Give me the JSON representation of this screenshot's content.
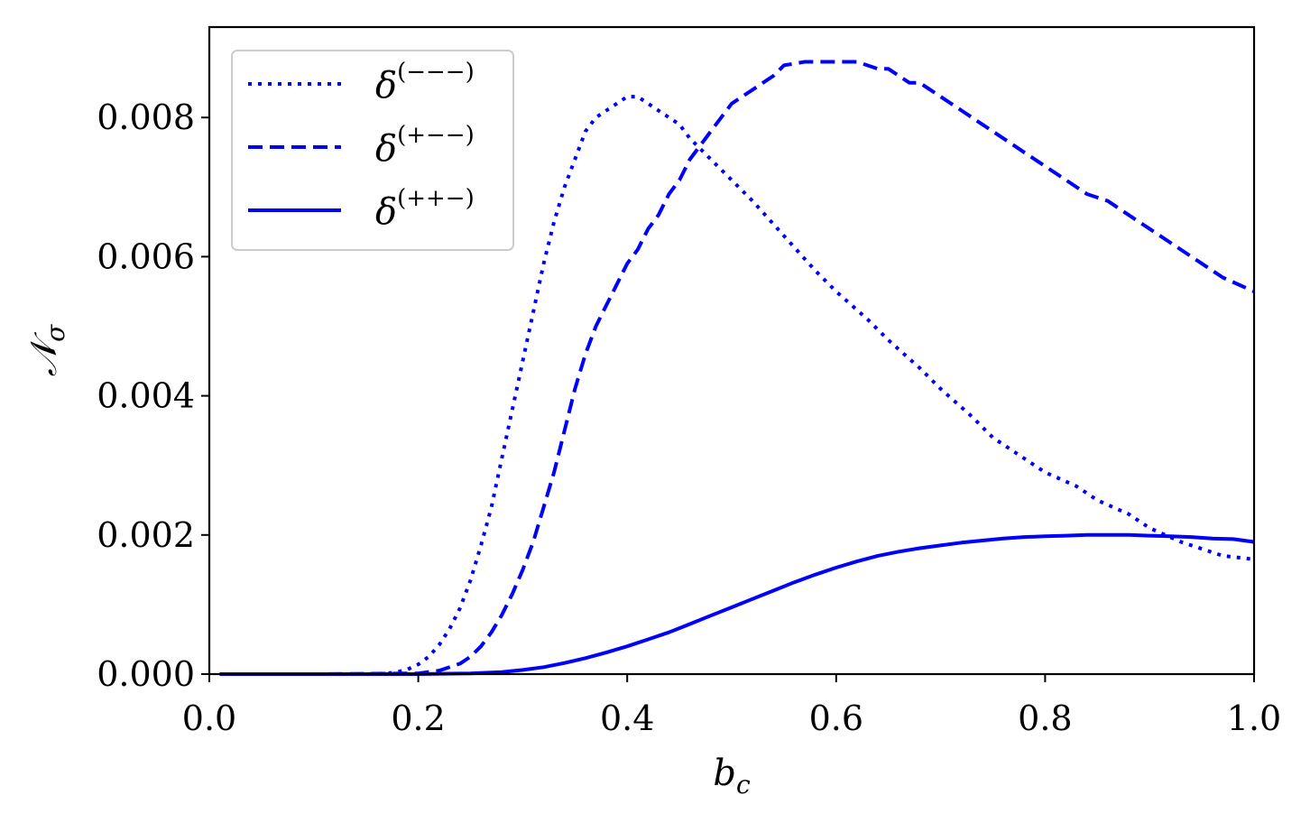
{
  "chart_data": {
    "type": "line",
    "xlabel": {
      "base": "b",
      "sub": "c"
    },
    "ylabel": {
      "base": "𝒩",
      "sub": "σ"
    },
    "xlim": [
      0.0,
      1.0
    ],
    "ylim": [
      0.0,
      0.0093
    ],
    "xticks": [
      0.0,
      0.2,
      0.4,
      0.6,
      0.8,
      1.0
    ],
    "xtick_labels": [
      "0.0",
      "0.2",
      "0.4",
      "0.6",
      "0.8",
      "1.0"
    ],
    "yticks": [
      0.0,
      0.002,
      0.004,
      0.006,
      0.008
    ],
    "ytick_labels": [
      "0.000",
      "0.002",
      "0.004",
      "0.006",
      "0.008"
    ],
    "grid": false,
    "legend_position": "top-left",
    "color": "#0000ff",
    "series": [
      {
        "name": "δ(−−−)",
        "name_base": "δ",
        "name_sup": "(−−−)",
        "style": "dotted",
        "x": [
          0.01,
          0.05,
          0.1,
          0.15,
          0.17,
          0.18,
          0.19,
          0.2,
          0.21,
          0.22,
          0.23,
          0.24,
          0.25,
          0.26,
          0.27,
          0.28,
          0.29,
          0.3,
          0.31,
          0.32,
          0.33,
          0.34,
          0.35,
          0.36,
          0.37,
          0.38,
          0.39,
          0.4,
          0.41,
          0.42,
          0.43,
          0.44,
          0.45,
          0.46,
          0.48,
          0.5,
          0.52,
          0.55,
          0.58,
          0.6,
          0.63,
          0.65,
          0.68,
          0.7,
          0.73,
          0.75,
          0.78,
          0.8,
          0.83,
          0.85,
          0.88,
          0.9,
          0.93,
          0.95,
          0.97,
          1.0
        ],
        "y": [
          0.0,
          0.0,
          0.0,
          0.0,
          1e-05,
          3e-05,
          7e-05,
          0.00014,
          0.00025,
          0.00042,
          0.00065,
          0.00095,
          0.00135,
          0.00185,
          0.0024,
          0.0031,
          0.0038,
          0.0045,
          0.0052,
          0.0059,
          0.0065,
          0.007,
          0.0074,
          0.0078,
          0.008,
          0.0081,
          0.0082,
          0.0083,
          0.0083,
          0.0082,
          0.0081,
          0.008,
          0.0079,
          0.0077,
          0.0074,
          0.0071,
          0.0068,
          0.0063,
          0.0058,
          0.0055,
          0.0051,
          0.0048,
          0.0044,
          0.0041,
          0.0037,
          0.0034,
          0.0031,
          0.0029,
          0.0027,
          0.0025,
          0.0023,
          0.0021,
          0.0019,
          0.0018,
          0.0017,
          0.00165
        ]
      },
      {
        "name": "δ(+−−)",
        "name_base": "δ",
        "name_sup": "(+−−)",
        "style": "dashed",
        "x": [
          0.01,
          0.1,
          0.2,
          0.22,
          0.24,
          0.25,
          0.26,
          0.27,
          0.28,
          0.29,
          0.3,
          0.31,
          0.32,
          0.33,
          0.34,
          0.35,
          0.36,
          0.37,
          0.38,
          0.39,
          0.4,
          0.41,
          0.42,
          0.43,
          0.44,
          0.45,
          0.46,
          0.47,
          0.48,
          0.49,
          0.5,
          0.52,
          0.54,
          0.55,
          0.57,
          0.58,
          0.6,
          0.62,
          0.64,
          0.65,
          0.67,
          0.68,
          0.7,
          0.72,
          0.74,
          0.75,
          0.77,
          0.78,
          0.8,
          0.82,
          0.84,
          0.86,
          0.88,
          0.9,
          0.92,
          0.94,
          0.95,
          0.97,
          1.0
        ],
        "y": [
          0.0,
          0.0,
          1e-05,
          5e-05,
          0.00015,
          0.00025,
          0.0004,
          0.0006,
          0.00085,
          0.00115,
          0.0015,
          0.0019,
          0.0024,
          0.0029,
          0.0035,
          0.0041,
          0.0046,
          0.005,
          0.0053,
          0.0056,
          0.0059,
          0.0061,
          0.0064,
          0.0066,
          0.0069,
          0.0071,
          0.0074,
          0.0076,
          0.0078,
          0.008,
          0.0082,
          0.0084,
          0.0086,
          0.00875,
          0.0088,
          0.0088,
          0.0088,
          0.0088,
          0.0087,
          0.0087,
          0.0085,
          0.0085,
          0.0083,
          0.0081,
          0.0079,
          0.0078,
          0.0076,
          0.0075,
          0.0073,
          0.0071,
          0.0069,
          0.0068,
          0.0066,
          0.0064,
          0.0062,
          0.006,
          0.0059,
          0.0057,
          0.0055
        ]
      },
      {
        "name": "δ(++−)",
        "name_base": "δ",
        "name_sup": "(++−)",
        "style": "solid",
        "x": [
          0.01,
          0.1,
          0.2,
          0.25,
          0.28,
          0.3,
          0.32,
          0.34,
          0.36,
          0.38,
          0.4,
          0.42,
          0.44,
          0.46,
          0.48,
          0.5,
          0.52,
          0.54,
          0.56,
          0.58,
          0.6,
          0.62,
          0.64,
          0.66,
          0.68,
          0.7,
          0.72,
          0.74,
          0.76,
          0.78,
          0.8,
          0.82,
          0.84,
          0.86,
          0.88,
          0.9,
          0.92,
          0.94,
          0.96,
          0.98,
          1.0
        ],
        "y": [
          0.0,
          0.0,
          0.0,
          1e-05,
          3e-05,
          6e-05,
          0.0001,
          0.00016,
          0.00023,
          0.00031,
          0.0004,
          0.0005,
          0.0006,
          0.00072,
          0.00084,
          0.00096,
          0.00108,
          0.0012,
          0.00132,
          0.00143,
          0.00153,
          0.00162,
          0.0017,
          0.00176,
          0.00181,
          0.00185,
          0.00189,
          0.00192,
          0.00195,
          0.00197,
          0.00198,
          0.00199,
          0.002,
          0.002,
          0.002,
          0.00199,
          0.00198,
          0.00197,
          0.00195,
          0.00194,
          0.0019
        ]
      }
    ]
  }
}
